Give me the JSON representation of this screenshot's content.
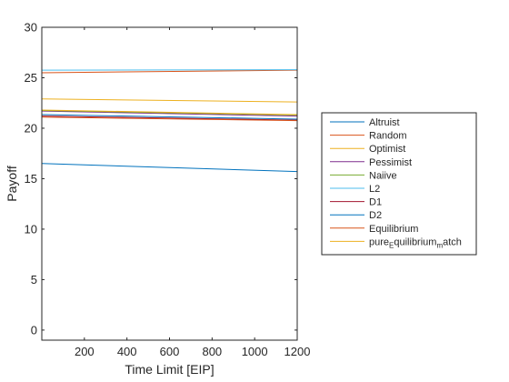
{
  "chart_data": {
    "type": "line",
    "title": "",
    "xlabel": "Time Limit [EIP]",
    "ylabel": "Payoff",
    "xlim": [
      0,
      1200
    ],
    "ylim": [
      -1,
      30
    ],
    "xticks": [
      200,
      400,
      600,
      800,
      1000,
      1200
    ],
    "yticks": [
      0,
      5,
      10,
      15,
      20,
      25,
      30
    ],
    "grid": false,
    "legend_position": "outside-right",
    "series": [
      {
        "name": "Altruist",
        "color": "#0072BD",
        "x": [
          0,
          1200
        ],
        "y": [
          16.5,
          15.7
        ]
      },
      {
        "name": "Random",
        "color": "#D95319",
        "x": [
          0,
          1200
        ],
        "y": [
          25.5,
          25.75
        ]
      },
      {
        "name": "Optimist",
        "color": "#EDB120",
        "x": [
          0,
          1200
        ],
        "y": [
          22.9,
          22.6
        ]
      },
      {
        "name": "Pessimist",
        "color": "#7E2F8E",
        "x": [
          0,
          1200
        ],
        "y": [
          21.7,
          21.2
        ]
      },
      {
        "name": "Naiive",
        "color": "#77AC30",
        "x": [
          0,
          1200
        ],
        "y": [
          21.75,
          21.3
        ]
      },
      {
        "name": "L2",
        "color": "#4DBEEE",
        "x": [
          0,
          1200
        ],
        "y": [
          25.75,
          25.8
        ]
      },
      {
        "name": "D1",
        "color": "#A2142F",
        "x": [
          0,
          1200
        ],
        "y": [
          21.2,
          20.8
        ]
      },
      {
        "name": "D2",
        "color": "#0072BD",
        "x": [
          0,
          1200
        ],
        "y": [
          21.35,
          20.9
        ]
      },
      {
        "name": "Equilibrium",
        "color": "#D95319",
        "x": [
          0,
          1200
        ],
        "y": [
          21.1,
          20.75
        ]
      },
      {
        "name": "pure_Equilibrium_match",
        "legend_parts": [
          "pure",
          "E",
          "quilibrium",
          "m",
          "atch"
        ],
        "color": "#EDB120",
        "x": [
          0,
          1200
        ],
        "y": [
          21.8,
          21.35
        ]
      }
    ]
  }
}
